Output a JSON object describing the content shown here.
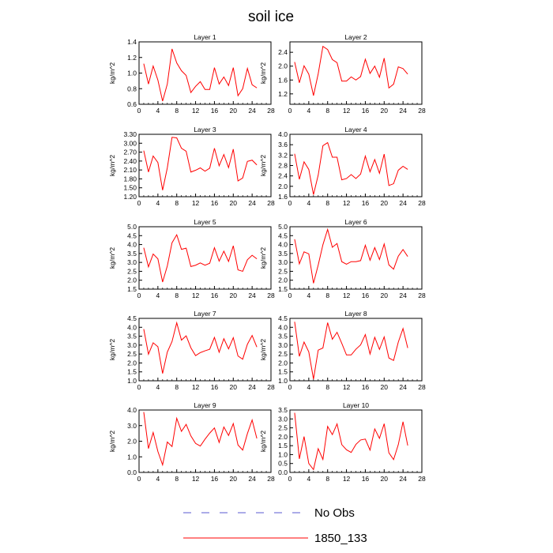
{
  "title": "soil ice",
  "legend": {
    "items": [
      {
        "label": "No Obs",
        "color": "#5a5ad0",
        "dash": true
      },
      {
        "label": "1850_133",
        "color": "#ff0000",
        "dash": false
      }
    ]
  },
  "chart_data": [
    {
      "type": "line",
      "title": "Layer 1",
      "xlabel": "",
      "ylabel": "kg/m^2",
      "xlim": [
        0,
        28
      ],
      "ylim": [
        0.6,
        1.4
      ],
      "xticks": [
        "0",
        "4",
        "8",
        "12",
        "16",
        "20",
        "24",
        "28"
      ],
      "yticks": [
        "0.6",
        "0.8",
        "1.0",
        "1.2",
        "1.4"
      ],
      "series": [
        {
          "name": "1850_133",
          "color": "#ff0000",
          "x": [
            1,
            2,
            3,
            4,
            5,
            6,
            7,
            8,
            9,
            10,
            11,
            12,
            13,
            14,
            15,
            16,
            17,
            18,
            19,
            20,
            21,
            22,
            23,
            24,
            25
          ],
          "y": [
            1.12,
            0.86,
            1.09,
            0.91,
            0.64,
            0.86,
            1.31,
            1.13,
            1.03,
            0.97,
            0.75,
            0.83,
            0.89,
            0.79,
            0.79,
            1.07,
            0.86,
            0.95,
            0.84,
            1.07,
            0.71,
            0.8,
            1.06,
            0.85,
            0.81
          ]
        }
      ]
    },
    {
      "type": "line",
      "title": "Layer 2",
      "xlabel": "",
      "ylabel": "kg/m^2",
      "xlim": [
        0,
        28
      ],
      "ylim": [
        0.9,
        2.7
      ],
      "xticks": [
        "0",
        "4",
        "8",
        "12",
        "16",
        "20",
        "24",
        "28"
      ],
      "yticks": [
        "1.2",
        "1.6",
        "2.0",
        "2.4"
      ],
      "series": [
        {
          "name": "1850_133",
          "color": "#ff0000",
          "x": [
            1,
            2,
            3,
            4,
            5,
            6,
            7,
            8,
            9,
            10,
            11,
            12,
            13,
            14,
            15,
            16,
            17,
            18,
            19,
            20,
            21,
            22,
            23,
            24,
            25
          ],
          "y": [
            2.12,
            1.52,
            2.01,
            1.77,
            1.15,
            1.78,
            2.57,
            2.48,
            2.19,
            2.1,
            1.57,
            1.57,
            1.69,
            1.6,
            1.7,
            2.2,
            1.79,
            2.0,
            1.68,
            2.23,
            1.37,
            1.48,
            1.98,
            1.93,
            1.77
          ]
        }
      ]
    },
    {
      "type": "line",
      "title": "Layer 3",
      "xlabel": "",
      "ylabel": "kg/m^2",
      "xlim": [
        0,
        28
      ],
      "ylim": [
        1.2,
        3.3
      ],
      "xticks": [
        "0",
        "4",
        "8",
        "12",
        "16",
        "20",
        "24",
        "28"
      ],
      "yticks": [
        "1.20",
        "1.50",
        "1.80",
        "2.10",
        "2.40",
        "2.70",
        "3.00",
        "3.30"
      ],
      "series": [
        {
          "name": "1850_133",
          "color": "#ff0000",
          "x": [
            1,
            2,
            3,
            4,
            5,
            6,
            7,
            8,
            9,
            10,
            11,
            12,
            13,
            14,
            15,
            16,
            17,
            18,
            19,
            20,
            21,
            22,
            23,
            24,
            25
          ],
          "y": [
            2.75,
            2.03,
            2.57,
            2.35,
            1.42,
            2.17,
            3.2,
            3.18,
            2.83,
            2.73,
            2.03,
            2.09,
            2.17,
            2.06,
            2.16,
            2.83,
            2.24,
            2.62,
            2.18,
            2.8,
            1.73,
            1.83,
            2.39,
            2.43,
            2.27
          ]
        }
      ]
    },
    {
      "type": "line",
      "title": "Layer 4",
      "xlabel": "",
      "ylabel": "kg/m^2",
      "xlim": [
        0,
        28
      ],
      "ylim": [
        1.6,
        4.0
      ],
      "xticks": [
        "0",
        "4",
        "8",
        "12",
        "16",
        "20",
        "24",
        "28"
      ],
      "yticks": [
        "1.6",
        "2.0",
        "2.4",
        "2.8",
        "3.2",
        "3.6",
        "4.0"
      ],
      "series": [
        {
          "name": "1850_133",
          "color": "#ff0000",
          "x": [
            1,
            2,
            3,
            4,
            5,
            6,
            7,
            8,
            9,
            10,
            11,
            12,
            13,
            14,
            15,
            16,
            17,
            18,
            19,
            20,
            21,
            22,
            23,
            24,
            25
          ],
          "y": [
            3.25,
            2.27,
            2.94,
            2.65,
            1.68,
            2.43,
            3.56,
            3.68,
            3.12,
            3.12,
            2.25,
            2.3,
            2.45,
            2.3,
            2.47,
            3.16,
            2.56,
            3.03,
            2.5,
            3.24,
            2.03,
            2.1,
            2.62,
            2.77,
            2.65
          ]
        }
      ]
    },
    {
      "type": "line",
      "title": "Layer 5",
      "xlabel": "",
      "ylabel": "kg/m^2",
      "xlim": [
        0,
        28
      ],
      "ylim": [
        1.5,
        5.0
      ],
      "xticks": [
        "0",
        "4",
        "8",
        "12",
        "16",
        "20",
        "24",
        "28"
      ],
      "yticks": [
        "1.5",
        "2.0",
        "2.5",
        "3.0",
        "3.5",
        "4.0",
        "4.5",
        "5.0"
      ],
      "series": [
        {
          "name": "1850_133",
          "color": "#ff0000",
          "x": [
            1,
            2,
            3,
            4,
            5,
            6,
            7,
            8,
            9,
            10,
            11,
            12,
            13,
            14,
            15,
            16,
            17,
            18,
            19,
            20,
            21,
            22,
            23,
            24,
            25
          ],
          "y": [
            3.82,
            2.75,
            3.47,
            3.2,
            1.9,
            2.8,
            4.1,
            4.55,
            3.73,
            3.8,
            2.77,
            2.84,
            2.97,
            2.84,
            2.95,
            3.82,
            3.07,
            3.63,
            3.05,
            3.93,
            2.58,
            2.5,
            3.15,
            3.4,
            3.2
          ]
        }
      ]
    },
    {
      "type": "line",
      "title": "Layer 6",
      "xlabel": "",
      "ylabel": "kg/m^2",
      "xlim": [
        0,
        28
      ],
      "ylim": [
        1.5,
        5.0
      ],
      "xticks": [
        "0",
        "4",
        "8",
        "12",
        "16",
        "20",
        "24",
        "28"
      ],
      "yticks": [
        "1.5",
        "2.0",
        "2.5",
        "3.0",
        "3.5",
        "4.0",
        "4.5",
        "5.0"
      ],
      "series": [
        {
          "name": "1850_133",
          "color": "#ff0000",
          "x": [
            1,
            2,
            3,
            4,
            5,
            6,
            7,
            8,
            9,
            10,
            11,
            12,
            13,
            14,
            15,
            16,
            17,
            18,
            19,
            20,
            21,
            22,
            23,
            24,
            25
          ],
          "y": [
            4.3,
            2.92,
            3.59,
            3.48,
            1.83,
            2.85,
            3.99,
            4.85,
            3.85,
            4.06,
            3.04,
            2.9,
            3.04,
            3.04,
            3.1,
            3.96,
            3.12,
            3.83,
            3.16,
            4.03,
            2.86,
            2.62,
            3.35,
            3.72,
            3.33
          ]
        }
      ]
    },
    {
      "type": "line",
      "title": "Layer 7",
      "xlabel": "",
      "ylabel": "kg/m^2",
      "xlim": [
        0,
        28
      ],
      "ylim": [
        1.0,
        4.5
      ],
      "xticks": [
        "0",
        "4",
        "8",
        "12",
        "16",
        "20",
        "24",
        "28"
      ],
      "yticks": [
        "1.0",
        "1.5",
        "2.0",
        "2.5",
        "3.0",
        "3.5",
        "4.0",
        "4.5"
      ],
      "series": [
        {
          "name": "1850_133",
          "color": "#ff0000",
          "x": [
            1,
            2,
            3,
            4,
            5,
            6,
            7,
            8,
            9,
            10,
            11,
            12,
            13,
            14,
            15,
            16,
            17,
            18,
            19,
            20,
            21,
            22,
            23,
            24,
            25
          ],
          "y": [
            3.9,
            2.49,
            3.13,
            2.91,
            1.41,
            2.61,
            3.2,
            4.25,
            3.28,
            3.52,
            2.85,
            2.41,
            2.58,
            2.68,
            2.77,
            3.43,
            2.6,
            3.36,
            2.79,
            3.42,
            2.39,
            2.21,
            3.05,
            3.54,
            2.89
          ]
        }
      ]
    },
    {
      "type": "line",
      "title": "Layer 8",
      "xlabel": "",
      "ylabel": "kg/m^2",
      "xlim": [
        0,
        28
      ],
      "ylim": [
        1.0,
        4.5
      ],
      "xticks": [
        "0",
        "4",
        "8",
        "12",
        "16",
        "20",
        "24",
        "28"
      ],
      "yticks": [
        "1.0",
        "1.5",
        "2.0",
        "2.5",
        "3.0",
        "3.5",
        "4.0",
        "4.5"
      ],
      "series": [
        {
          "name": "1850_133",
          "color": "#ff0000",
          "x": [
            1,
            2,
            3,
            4,
            5,
            6,
            7,
            8,
            9,
            10,
            11,
            12,
            13,
            14,
            15,
            16,
            17,
            18,
            19,
            20,
            21,
            22,
            23,
            24,
            25
          ],
          "y": [
            4.31,
            2.37,
            3.17,
            2.62,
            1.09,
            2.72,
            2.84,
            4.26,
            3.33,
            3.72,
            3.1,
            2.45,
            2.45,
            2.77,
            3.01,
            3.59,
            2.5,
            3.44,
            2.76,
            3.46,
            2.28,
            2.14,
            3.17,
            3.93,
            2.84
          ]
        }
      ]
    },
    {
      "type": "line",
      "title": "Layer 9",
      "xlabel": "",
      "ylabel": "kg/m^2",
      "xlim": [
        0,
        28
      ],
      "ylim": [
        0.0,
        4.0
      ],
      "xticks": [
        "0",
        "4",
        "8",
        "12",
        "16",
        "20",
        "24",
        "28"
      ],
      "yticks": [
        "0.0",
        "1.0",
        "2.0",
        "3.0",
        "4.0"
      ],
      "series": [
        {
          "name": "1850_133",
          "color": "#ff0000",
          "x": [
            1,
            2,
            3,
            4,
            5,
            6,
            7,
            8,
            9,
            10,
            11,
            12,
            13,
            14,
            15,
            16,
            17,
            18,
            19,
            20,
            21,
            22,
            23,
            24,
            25
          ],
          "y": [
            3.87,
            1.53,
            2.56,
            1.34,
            0.48,
            1.95,
            1.66,
            3.47,
            2.63,
            3.08,
            2.34,
            1.86,
            1.69,
            2.13,
            2.52,
            2.85,
            1.92,
            2.91,
            2.37,
            3.13,
            1.76,
            1.43,
            2.49,
            3.36,
            2.18
          ]
        }
      ]
    },
    {
      "type": "line",
      "title": "Layer 10",
      "xlabel": "",
      "ylabel": "kg/m^2",
      "xlim": [
        0,
        28
      ],
      "ylim": [
        0.0,
        3.5
      ],
      "xticks": [
        "0",
        "4",
        "8",
        "12",
        "16",
        "20",
        "24",
        "28"
      ],
      "yticks": [
        "0.0",
        "0.5",
        "1.0",
        "1.5",
        "2.0",
        "2.5",
        "3.0",
        "3.5"
      ],
      "series": [
        {
          "name": "1850_133",
          "color": "#ff0000",
          "x": [
            1,
            2,
            3,
            4,
            5,
            6,
            7,
            8,
            9,
            10,
            11,
            12,
            13,
            14,
            15,
            16,
            17,
            18,
            19,
            20,
            21,
            22,
            23,
            24,
            25
          ],
          "y": [
            3.34,
            0.76,
            2.01,
            0.5,
            0.16,
            1.33,
            0.73,
            2.58,
            2.12,
            2.72,
            1.56,
            1.27,
            1.12,
            1.57,
            1.82,
            1.87,
            1.25,
            2.44,
            1.91,
            2.73,
            1.1,
            0.72,
            1.56,
            2.84,
            1.51
          ]
        }
      ]
    }
  ]
}
